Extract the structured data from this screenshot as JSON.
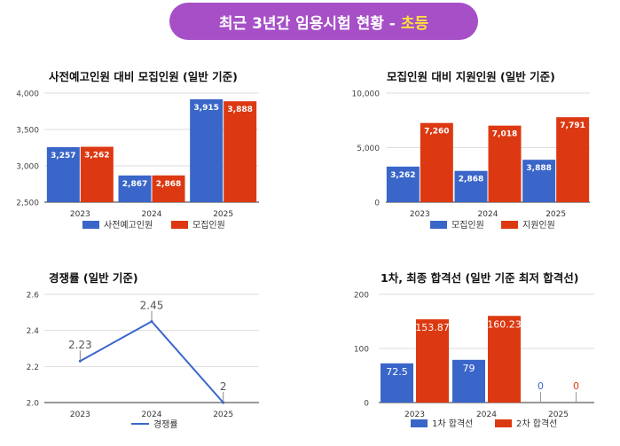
{
  "page": {
    "banner_text": "최근 3년간 임용시험 현황 -",
    "banner_highlight": "초등",
    "banner_color": "#a64fc7",
    "highlight_color": "#ffe23a"
  },
  "chart_data": [
    {
      "type": "bar",
      "title": "사전예고인원 대비 모집인원 (일반 기준)",
      "categories": [
        "2023",
        "2024",
        "2025"
      ],
      "series": [
        {
          "name": "사전예고인원",
          "values": [
            3257,
            2867,
            3915
          ],
          "labels": [
            "3,257",
            "2,867",
            "3,915"
          ],
          "color": "#3a66c9"
        },
        {
          "name": "모집인원",
          "values": [
            3262,
            2868,
            3888
          ],
          "labels": [
            "3,262",
            "2,868",
            "3,888"
          ],
          "color": "#dc3912"
        }
      ],
      "ylim": [
        2500,
        4000
      ],
      "yticks": [
        2500,
        3000,
        3500,
        4000
      ],
      "ytick_labels": [
        "2,500",
        "3,000",
        "3,500",
        "4,000"
      ],
      "grid": true,
      "legend": "bottom",
      "label_style": "inside-white"
    },
    {
      "type": "bar",
      "title": "모집인원 대비 지원인원 (일반 기준)",
      "categories": [
        "2023",
        "2024",
        "2025"
      ],
      "series": [
        {
          "name": "모집인원",
          "values": [
            3262,
            2868,
            3888
          ],
          "labels": [
            "3,262",
            "2,868",
            "3,888"
          ],
          "color": "#3a66c9"
        },
        {
          "name": "지원인원",
          "values": [
            7260,
            7018,
            7791
          ],
          "labels": [
            "7,260",
            "7,018",
            "7,791"
          ],
          "color": "#dc3912"
        }
      ],
      "ylim": [
        0,
        10000
      ],
      "yticks": [
        0,
        5000,
        10000
      ],
      "ytick_labels": [
        "0",
        "5,000",
        "10,000"
      ],
      "grid": true,
      "legend": "bottom",
      "label_style": "inside-white"
    },
    {
      "type": "line",
      "title": "경쟁률 (일반 기준)",
      "categories": [
        "2023",
        "2024",
        "2025"
      ],
      "series": [
        {
          "name": "경쟁률",
          "values": [
            2.23,
            2.45,
            2
          ],
          "labels": [
            "2.23",
            "2.45",
            "2"
          ],
          "color": "#3a66c9"
        }
      ],
      "ylim": [
        2.0,
        2.6
      ],
      "yticks": [
        2.0,
        2.2,
        2.4,
        2.6
      ],
      "ytick_labels": [
        "2.0",
        "2.2",
        "2.4",
        "2.6"
      ],
      "grid": true,
      "legend": "bottom",
      "label_style": "above-stem"
    },
    {
      "type": "bar",
      "title": "1차, 최종 합격선 (일반 기준 최저 합격선)",
      "categories": [
        "2023",
        "2024",
        "2025"
      ],
      "series": [
        {
          "name": "1차 합격선",
          "values": [
            72.5,
            79,
            0
          ],
          "labels": [
            "72.5",
            "79",
            "0"
          ],
          "color": "#3a66c9"
        },
        {
          "name": "2차 합격선",
          "values": [
            153.87,
            160.23,
            0
          ],
          "labels": [
            "153.87",
            "160.23",
            "0"
          ],
          "color": "#dc3912"
        }
      ],
      "ylim": [
        0,
        200
      ],
      "yticks": [
        0,
        100,
        200
      ],
      "ytick_labels": [
        "0",
        "100",
        "200"
      ],
      "grid": true,
      "legend": "bottom",
      "label_style": "inside-white-large"
    }
  ]
}
